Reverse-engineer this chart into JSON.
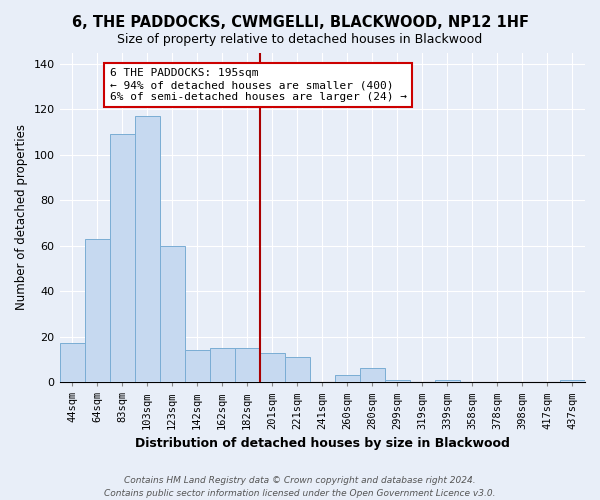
{
  "title": "6, THE PADDOCKS, CWMGELLI, BLACKWOOD, NP12 1HF",
  "subtitle": "Size of property relative to detached houses in Blackwood",
  "xlabel": "Distribution of detached houses by size in Blackwood",
  "ylabel": "Number of detached properties",
  "bar_labels": [
    "44sqm",
    "64sqm",
    "83sqm",
    "103sqm",
    "123sqm",
    "142sqm",
    "162sqm",
    "182sqm",
    "201sqm",
    "221sqm",
    "241sqm",
    "260sqm",
    "280sqm",
    "299sqm",
    "319sqm",
    "339sqm",
    "358sqm",
    "378sqm",
    "398sqm",
    "417sqm",
    "437sqm"
  ],
  "bar_values": [
    17,
    63,
    109,
    117,
    60,
    14,
    15,
    15,
    13,
    11,
    0,
    3,
    6,
    1,
    0,
    1,
    0,
    0,
    0,
    0,
    1
  ],
  "bar_color": "#c6d9f0",
  "bar_edge_color": "#7aadd4",
  "vline_index": 8,
  "vline_color": "#aa0000",
  "ylim": [
    0,
    145
  ],
  "yticks": [
    0,
    20,
    40,
    60,
    80,
    100,
    120,
    140
  ],
  "annotation_line1": "6 THE PADDOCKS: 195sqm",
  "annotation_line2": "← 94% of detached houses are smaller (400)",
  "annotation_line3": "6% of semi-detached houses are larger (24) →",
  "annotation_box_color": "#ffffff",
  "annotation_box_edge": "#cc0000",
  "footer_line1": "Contains HM Land Registry data © Crown copyright and database right 2024.",
  "footer_line2": "Contains public sector information licensed under the Open Government Licence v3.0.",
  "background_color": "#e8eef8",
  "grid_color": "#ffffff",
  "title_fontsize": 10.5,
  "subtitle_fontsize": 9,
  "ylabel_fontsize": 8.5,
  "xlabel_fontsize": 9,
  "tick_fontsize": 7.5,
  "footer_fontsize": 6.5
}
